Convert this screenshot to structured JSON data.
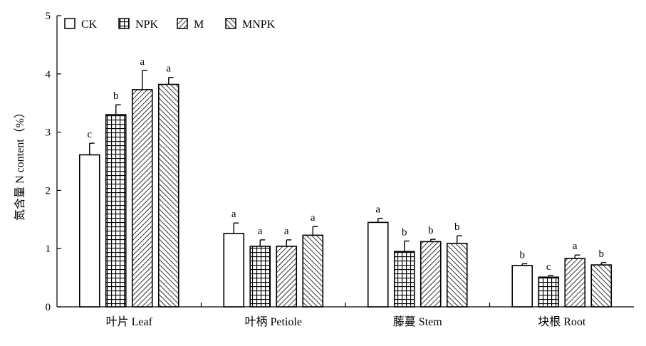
{
  "chart_data": {
    "type": "bar",
    "title": "",
    "ylabel": "氮含量 N content（%）",
    "xlabel": "",
    "ylim": [
      0,
      5
    ],
    "yticks": [
      0,
      1,
      2,
      3,
      4,
      5
    ],
    "categories": [
      "叶片 Leaf",
      "叶柄 Petiole",
      "藤蔓 Stem",
      "块根 Root"
    ],
    "legend_position": "top-left",
    "grid": false,
    "series": [
      {
        "name": "CK",
        "pattern": "blank",
        "values": [
          2.61,
          1.26,
          1.45,
          0.71
        ],
        "errors": [
          0.2,
          0.18,
          0.07,
          0.03
        ],
        "letters": [
          "c",
          "a",
          "a",
          "b"
        ]
      },
      {
        "name": "NPK",
        "pattern": "grid",
        "values": [
          3.3,
          1.04,
          0.95,
          0.51
        ],
        "errors": [
          0.17,
          0.11,
          0.18,
          0.03
        ],
        "letters": [
          "b",
          "a",
          "b",
          "c"
        ]
      },
      {
        "name": "M",
        "pattern": "diagonal",
        "values": [
          3.73,
          1.04,
          1.12,
          0.83
        ],
        "errors": [
          0.33,
          0.11,
          0.04,
          0.06
        ],
        "letters": [
          "a",
          "a",
          "b",
          "a"
        ]
      },
      {
        "name": "MNPK",
        "pattern": "backslash",
        "values": [
          3.82,
          1.23,
          1.09,
          0.72
        ],
        "errors": [
          0.12,
          0.15,
          0.13,
          0.04
        ],
        "letters": [
          "a",
          "a",
          "b",
          "b"
        ]
      }
    ]
  }
}
